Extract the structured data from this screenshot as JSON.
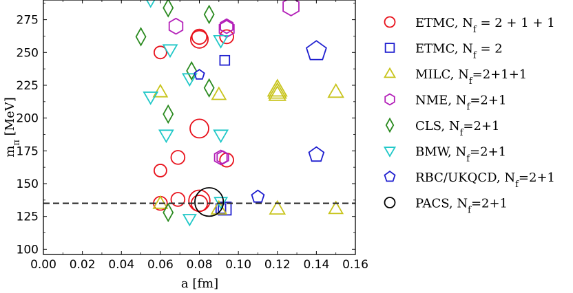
{
  "chart_data": {
    "type": "scatter",
    "xlabel": "a [fm]",
    "ylabel_main": "m",
    "ylabel_sub": "π",
    "ylabel_unit": " [MeV]",
    "xlim": [
      0.0,
      0.16
    ],
    "ylim": [
      96,
      290
    ],
    "xticks": [
      "0.00",
      "0.02",
      "0.04",
      "0.06",
      "0.08",
      "0.10",
      "0.12",
      "0.14",
      "0.16"
    ],
    "yticks": [
      "100",
      "125",
      "150",
      "175",
      "200",
      "225",
      "250",
      "275"
    ],
    "xtick_values": [
      0.0,
      0.02,
      0.04,
      0.06,
      0.08,
      0.1,
      0.12,
      0.14,
      0.16
    ],
    "ytick_values": [
      100,
      125,
      150,
      175,
      200,
      225,
      250,
      275
    ],
    "reference_line": {
      "y": 135,
      "style": "dashed",
      "color": "#333333"
    },
    "legend_position": "right",
    "series": [
      {
        "name": "ETMC, N_f = 2 + 1 + 1",
        "label_main": "ETMC, N",
        "label_sub": "f",
        "label_rest": " = 2 + 1 + 1",
        "marker": "circle",
        "color": "#e8101a",
        "points": [
          [
            0.06,
            250,
            1
          ],
          [
            0.06,
            160,
            1
          ],
          [
            0.06,
            135,
            1.1
          ],
          [
            0.069,
            170,
            1.1
          ],
          [
            0.069,
            138,
            1.1
          ],
          [
            0.08,
            262,
            1.2
          ],
          [
            0.08,
            260,
            1.4
          ],
          [
            0.08,
            192,
            1.5
          ],
          [
            0.08,
            135,
            1.3
          ],
          [
            0.08,
            137,
            1.7
          ],
          [
            0.094,
            262,
            1.1
          ],
          [
            0.094,
            168,
            1.1
          ]
        ]
      },
      {
        "name": "ETMC, N_f = 2",
        "label_main": "ETMC, N",
        "label_sub": "f",
        "label_rest": " = 2",
        "marker": "square",
        "color": "#1e1ecf",
        "points": [
          [
            0.093,
            244,
            0.9
          ],
          [
            0.093,
            131,
            1.2
          ],
          [
            0.091,
            131,
            0.9
          ]
        ]
      },
      {
        "name": "MILC, N_f=2+1+1",
        "label_main": "MILC, N",
        "label_sub": "f",
        "label_rest": "=2+1+1",
        "marker": "triangle-up",
        "color": "#c8c41c",
        "points": [
          [
            0.06,
            220,
            1.1
          ],
          [
            0.06,
            135,
            1.1
          ],
          [
            0.09,
            218,
            1.1
          ],
          [
            0.09,
            131,
            1.2
          ],
          [
            0.12,
            218,
            1.3
          ],
          [
            0.12,
            220,
            1.4
          ],
          [
            0.12,
            222,
            1.5
          ],
          [
            0.12,
            131,
            1.2
          ],
          [
            0.15,
            220,
            1.2
          ],
          [
            0.15,
            131,
            1.1
          ]
        ]
      },
      {
        "name": "NME, N_f=2+1",
        "label_main": "NME, N",
        "label_sub": "f",
        "label_rest": "=2+1",
        "marker": "hexagon",
        "color": "#b31fb8",
        "points": [
          [
            0.068,
            270,
            1.2
          ],
          [
            0.094,
            268,
            1.3
          ],
          [
            0.094,
            270,
            1.1
          ],
          [
            0.091,
            170,
            1.1
          ],
          [
            0.092,
            170,
            1.0
          ],
          [
            0.127,
            285,
            1.4
          ]
        ]
      },
      {
        "name": "CLS, N_f=2+1",
        "label_main": "CLS, N",
        "label_sub": "f",
        "label_rest": "=2+1",
        "marker": "diamond",
        "color": "#2a8a1f",
        "points": [
          [
            0.05,
            262,
            1.1
          ],
          [
            0.064,
            284,
            1.1
          ],
          [
            0.064,
            203,
            1.1
          ],
          [
            0.064,
            128,
            1.1
          ],
          [
            0.076,
            236,
            1.1
          ],
          [
            0.085,
            279,
            1.1
          ],
          [
            0.085,
            223,
            1.1
          ]
        ]
      },
      {
        "name": "BMW, N_f=2+1",
        "label_main": "BMW, N",
        "label_sub": "f",
        "label_rest": "=2+1",
        "marker": "triangle-down",
        "color": "#21c8c8",
        "points": [
          [
            0.055,
            290,
            1.1
          ],
          [
            0.065,
            252,
            1.1
          ],
          [
            0.055,
            216,
            1.1
          ],
          [
            0.063,
            187,
            1.1
          ],
          [
            0.075,
            230,
            1.1
          ],
          [
            0.075,
            123,
            1.0
          ],
          [
            0.091,
            259,
            1.1
          ],
          [
            0.091,
            187,
            1.1
          ],
          [
            0.091,
            136,
            1.0
          ]
        ]
      },
      {
        "name": "RBC/UKQCD, N_f=2+1",
        "label_main": "RBC/UKQCD, N",
        "label_sub": "f",
        "label_rest": "=2+1",
        "marker": "pentagon",
        "color": "#1e1ecf",
        "points": [
          [
            0.08,
            233,
            0.8
          ],
          [
            0.11,
            140,
            1.0
          ],
          [
            0.14,
            172,
            1.2
          ],
          [
            0.14,
            251,
            1.6
          ]
        ]
      },
      {
        "name": "PACS, N_f=2+1",
        "label_main": "PACS, N",
        "label_sub": "f",
        "label_rest": "=2+1",
        "marker": "circle",
        "color": "#000000",
        "points": [
          [
            0.085,
            136,
            2.3
          ]
        ]
      }
    ]
  }
}
